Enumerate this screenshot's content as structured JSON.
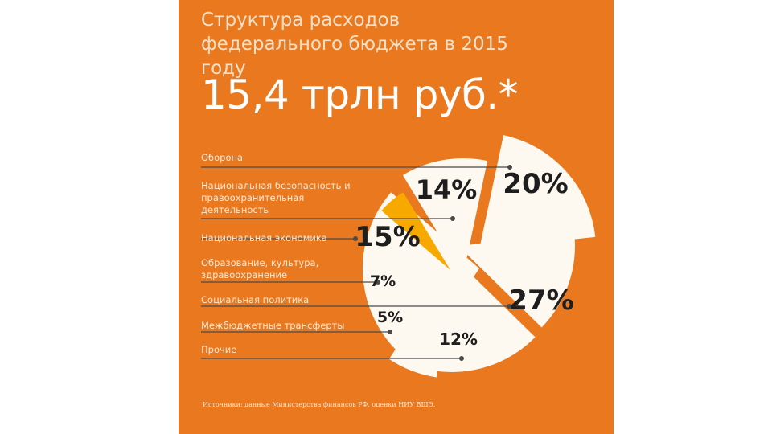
{
  "header": {
    "title": "Структура расходов федерального бюджета в 2015 году",
    "total": "15,4 трлн руб.*"
  },
  "colors": {
    "background": "#e9781e",
    "pie_fill": "#fdf8f0",
    "highlight": "#f7a900",
    "leader": "#4a4a4a"
  },
  "chart_data": {
    "type": "pie",
    "title": "Структура расходов федерального бюджета в 2015 году",
    "total": "15,4 трлн руб.*",
    "legend_position": "left",
    "series": [
      {
        "label": "Оборона",
        "value": 20,
        "value_label": "20%"
      },
      {
        "label": "Национальная безопасность и правоохранительная деятельность",
        "value": 14,
        "value_label": "14%"
      },
      {
        "label": "Национальная экономика",
        "value": 15,
        "value_label": "15%"
      },
      {
        "label": "Образование, культура, здравоохранение",
        "value": 7,
        "value_label": "7%"
      },
      {
        "label": "Социальная политика",
        "value": 27,
        "value_label": "27%"
      },
      {
        "label": "Межбюджетные трансферты",
        "value": 5,
        "value_label": "5%",
        "highlighted": true
      },
      {
        "label": "Прочие",
        "value": 12,
        "value_label": "12%"
      }
    ]
  },
  "labels": [
    "Оборона",
    "Национальная безопасность и правоохранительная деятельность",
    "Национальная экономика",
    "Образование, культура, здравоохранение",
    "Социальная политика",
    "Межбюджетные трансферты",
    "Прочие"
  ],
  "source": "Источники: данные Министерства финансов РФ, оценки НИУ ВШЭ."
}
